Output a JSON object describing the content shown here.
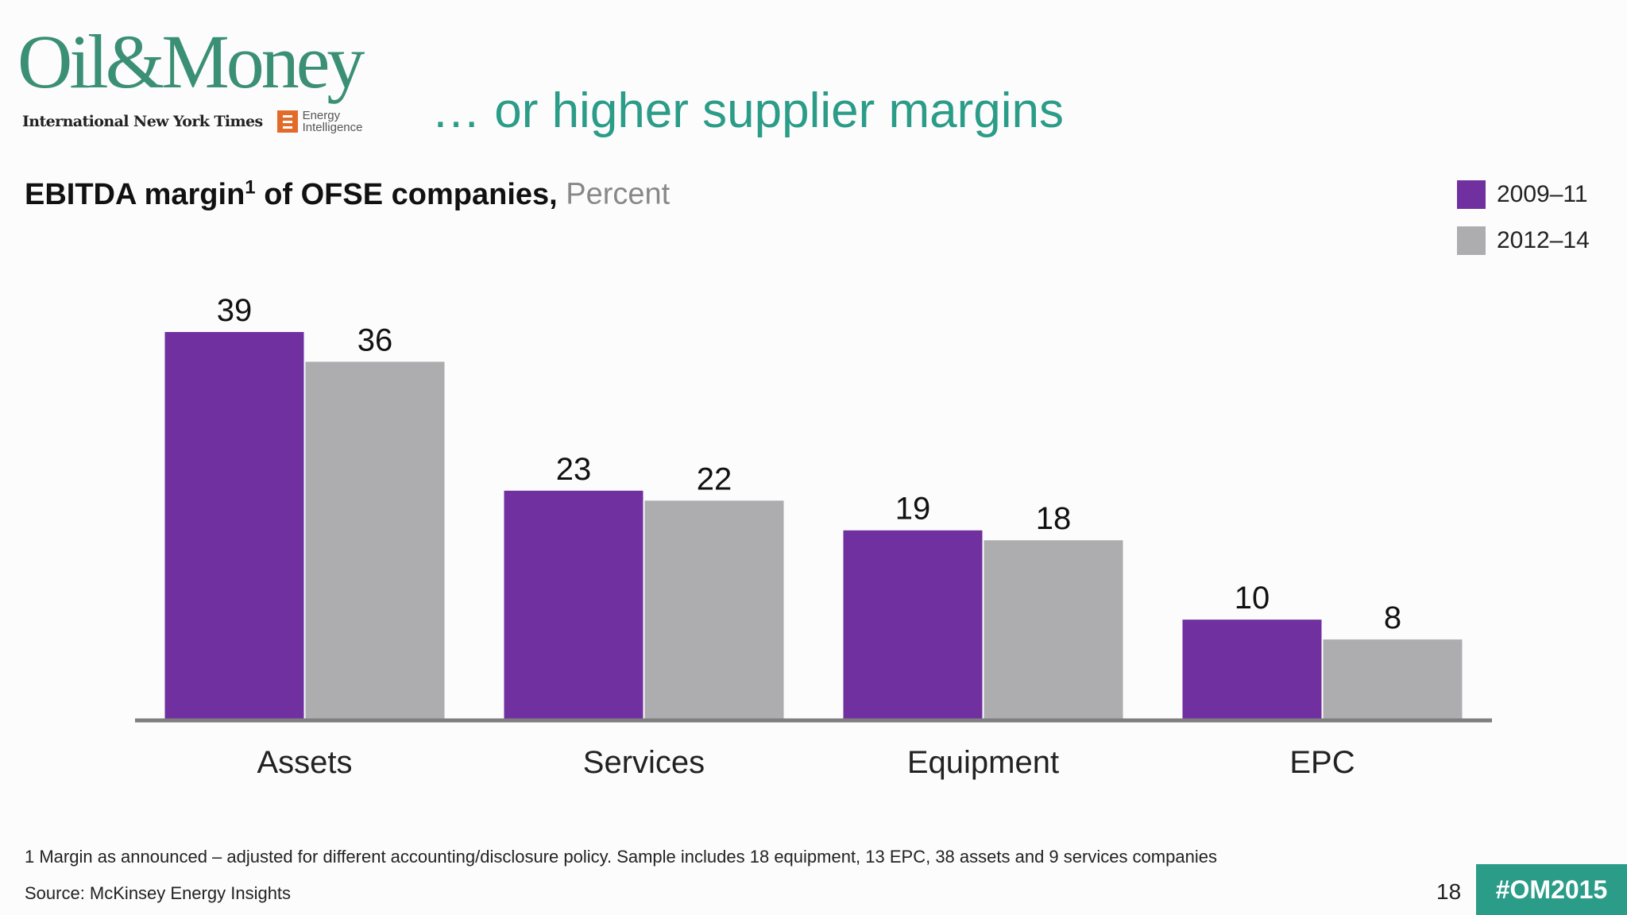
{
  "branding": {
    "logo": "Oil&Money",
    "partner_1": "International New York Times",
    "partner_2_line1": "Energy",
    "partner_2_line2": "Intelligence"
  },
  "slide": {
    "title": "… or higher supplier margins",
    "footnote": "1 Margin as announced – adjusted for different accounting/disclosure policy. Sample includes 18 equipment, 13 EPC, 38 assets and 9 services companies",
    "source": "Source: McKinsey Energy Insights",
    "page_number": "18",
    "hashtag": "#OM2015"
  },
  "chart_data": {
    "type": "bar",
    "title": "EBITDA margin",
    "title_superscript": "1",
    "title_rest": " of OFSE companies,",
    "unit": "Percent",
    "categories": [
      "Assets",
      "Services",
      "Equipment",
      "EPC"
    ],
    "series": [
      {
        "name": "2009–11",
        "values": [
          39,
          23,
          19,
          10
        ],
        "color": "#7030a0"
      },
      {
        "name": "2012–14",
        "values": [
          36,
          22,
          18,
          8
        ],
        "color": "#adacaf"
      }
    ],
    "ylim": [
      0,
      39
    ],
    "grid": false,
    "legend_position": "top-right",
    "axis_color": "#7f7f7f"
  }
}
